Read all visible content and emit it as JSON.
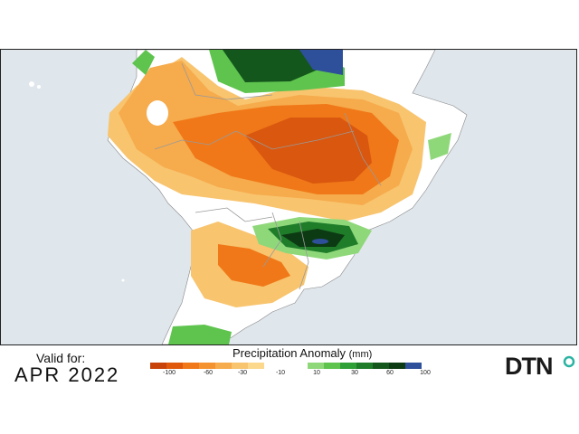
{
  "validity": {
    "label": "Valid for:",
    "date": "APR 2022"
  },
  "legend": {
    "title": "Precipitation Anomaly",
    "unit": "(mm)",
    "negative_colors": [
      "#c8430a",
      "#e0580c",
      "#f07818",
      "#f59230",
      "#f6ab4c",
      "#f8c46e",
      "#fbd88c"
    ],
    "positive_colors": [
      "#8fd87a",
      "#5ec44e",
      "#2fa035",
      "#1f7d2a",
      "#14571c",
      "#0c3a12",
      "#2e4f9a"
    ],
    "ticks_negative": [
      "-100",
      "-60",
      "-30",
      "-10"
    ],
    "ticks_positive": [
      "10",
      "30",
      "60",
      "100"
    ]
  },
  "logo": {
    "text": "DTN",
    "mark_color": "#2bb3a2"
  },
  "map": {
    "ocean_color": "#dfe6ec",
    "land_color": "#ffffff",
    "boundary_color": "#a0a0a0"
  }
}
